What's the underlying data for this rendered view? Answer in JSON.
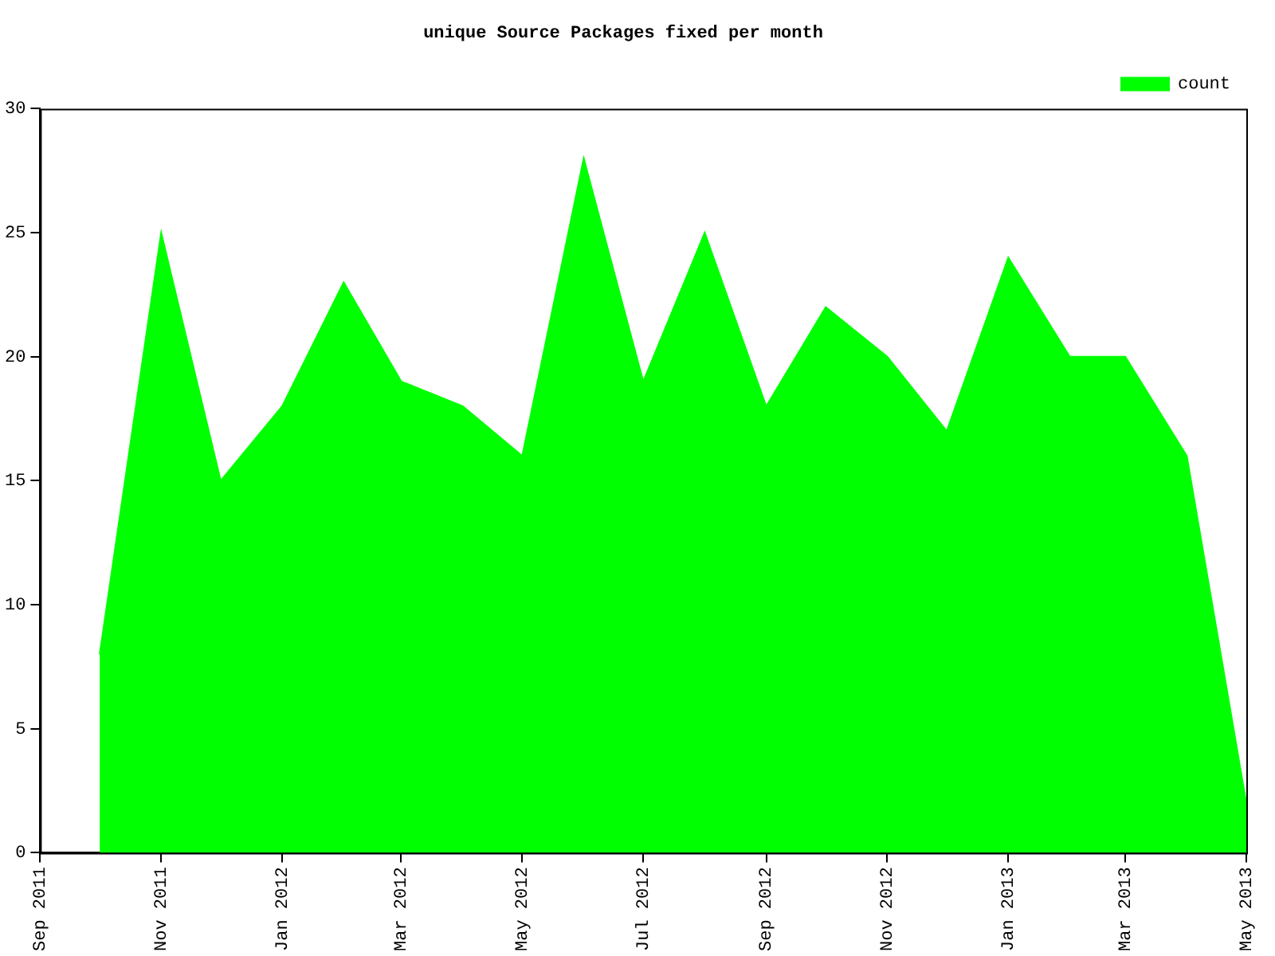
{
  "chart_data": {
    "type": "area",
    "title": "unique Source Packages fixed per month",
    "x": [
      "2011-10",
      "2011-11",
      "2011-12",
      "2012-01",
      "2012-02",
      "2012-03",
      "2012-04",
      "2012-05",
      "2012-06",
      "2012-07",
      "2012-08",
      "2012-09",
      "2012-10",
      "2012-11",
      "2012-12",
      "2013-01",
      "2013-02",
      "2013-03",
      "2013-04",
      "2013-05"
    ],
    "series": [
      {
        "name": "count",
        "color": "#00ff00",
        "values": [
          8,
          25,
          15,
          18,
          23,
          19,
          18,
          16,
          28,
          19,
          25,
          18,
          22,
          20,
          17,
          24,
          20,
          20,
          16,
          2
        ]
      }
    ],
    "xlim": [
      "2011-09",
      "2013-05"
    ],
    "xticks": [
      {
        "value": "2011-09",
        "label": "Sep 2011"
      },
      {
        "value": "2011-11",
        "label": "Nov 2011"
      },
      {
        "value": "2012-01",
        "label": "Jan 2012"
      },
      {
        "value": "2012-03",
        "label": "Mar 2012"
      },
      {
        "value": "2012-05",
        "label": "May 2012"
      },
      {
        "value": "2012-07",
        "label": "Jul 2012"
      },
      {
        "value": "2012-09",
        "label": "Sep 2012"
      },
      {
        "value": "2012-11",
        "label": "Nov 2012"
      },
      {
        "value": "2013-01",
        "label": "Jan 2013"
      },
      {
        "value": "2013-03",
        "label": "Mar 2013"
      },
      {
        "value": "2013-05",
        "label": "May 2013"
      }
    ],
    "ylim": [
      0,
      30
    ],
    "yticks": [
      0,
      5,
      10,
      15,
      20,
      25,
      30
    ],
    "grid": false,
    "legend": "top right"
  }
}
